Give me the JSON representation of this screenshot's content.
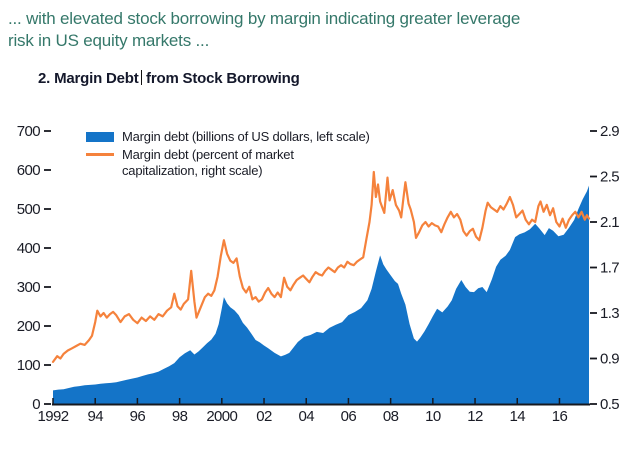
{
  "intro": {
    "line1": "... with elevated stock borrowing by margin indicating greater leverage",
    "line2": "risk in US equity markets ..."
  },
  "figure": {
    "title_full": "2. Margin Debt from Stock Borrowing",
    "title_prefix": "2. Margin Debt",
    "title_suffix": "from Stock Borrowing"
  },
  "legend": {
    "items": [
      {
        "label": "Margin debt (billions of US dollars, left scale)",
        "type": "area",
        "color": "#1474C8"
      },
      {
        "label": "Margin debt (percent of market capitalization, right scale)",
        "type": "line",
        "color": "#F5823C"
      }
    ]
  },
  "colors": {
    "area_blue": "#1474C8",
    "line_orange": "#F5823C",
    "intro_text": "#35786A",
    "title_text": "#14182B",
    "axis_text": "#1A1C26",
    "axis_line": "#16181F",
    "cursor": "#111111"
  },
  "chart_data": {
    "type": "area",
    "title": "2. Margin Debt from Stock Borrowing",
    "grid": "off",
    "legend_position": "top-left-inside",
    "left_axis": {
      "label": "billions of US dollars",
      "ticks": [
        700,
        600,
        500,
        400,
        300,
        200,
        100,
        0
      ],
      "range": [
        0,
        700
      ]
    },
    "right_axis": {
      "label": "percent of market capitalization",
      "ticks": [
        2.9,
        2.5,
        2.1,
        1.7,
        1.3,
        0.9,
        0.5
      ],
      "range": [
        0.5,
        2.9
      ]
    },
    "x_axis": {
      "tick_labels": [
        "1992",
        "94",
        "96",
        "98",
        "2000",
        "02",
        "04",
        "06",
        "08",
        "10",
        "12",
        "14",
        "16"
      ],
      "tick_years": [
        1992,
        1994,
        1996,
        1998,
        2000,
        2002,
        2004,
        2006,
        2008,
        2010,
        2012,
        2014,
        2016
      ],
      "range": [
        1992,
        2017.4
      ]
    },
    "series": [
      {
        "name": "Margin debt (billions of US dollars, left scale)",
        "type": "area",
        "axis": "left",
        "color": "#1474C8",
        "points": [
          [
            1992.0,
            35
          ],
          [
            1992.25,
            37
          ],
          [
            1992.5,
            38
          ],
          [
            1992.75,
            41
          ],
          [
            1993.0,
            44
          ],
          [
            1993.25,
            46
          ],
          [
            1993.5,
            48
          ],
          [
            1993.75,
            49
          ],
          [
            1994.0,
            50
          ],
          [
            1994.25,
            52
          ],
          [
            1994.5,
            53
          ],
          [
            1994.75,
            54
          ],
          [
            1995.0,
            56
          ],
          [
            1995.25,
            59
          ],
          [
            1995.5,
            62
          ],
          [
            1995.75,
            65
          ],
          [
            1996.0,
            68
          ],
          [
            1996.25,
            72
          ],
          [
            1996.5,
            76
          ],
          [
            1996.75,
            79
          ],
          [
            1997.0,
            83
          ],
          [
            1997.25,
            90
          ],
          [
            1997.5,
            97
          ],
          [
            1997.75,
            105
          ],
          [
            1998.0,
            120
          ],
          [
            1998.25,
            130
          ],
          [
            1998.5,
            138
          ],
          [
            1998.7,
            127
          ],
          [
            1998.9,
            135
          ],
          [
            1999.1,
            145
          ],
          [
            1999.3,
            156
          ],
          [
            1999.5,
            165
          ],
          [
            1999.7,
            180
          ],
          [
            1999.85,
            205
          ],
          [
            2000.0,
            245
          ],
          [
            2000.1,
            274
          ],
          [
            2000.25,
            258
          ],
          [
            2000.4,
            248
          ],
          [
            2000.6,
            240
          ],
          [
            2000.8,
            228
          ],
          [
            2001.0,
            208
          ],
          [
            2001.2,
            196
          ],
          [
            2001.4,
            180
          ],
          [
            2001.6,
            164
          ],
          [
            2001.8,
            158
          ],
          [
            2002.0,
            150
          ],
          [
            2002.2,
            143
          ],
          [
            2002.5,
            131
          ],
          [
            2002.8,
            122
          ],
          [
            2003.0,
            126
          ],
          [
            2003.2,
            131
          ],
          [
            2003.4,
            145
          ],
          [
            2003.6,
            159
          ],
          [
            2003.9,
            172
          ],
          [
            2004.2,
            177
          ],
          [
            2004.5,
            185
          ],
          [
            2004.8,
            182
          ],
          [
            2005.1,
            195
          ],
          [
            2005.4,
            203
          ],
          [
            2005.7,
            210
          ],
          [
            2006.0,
            228
          ],
          [
            2006.3,
            236
          ],
          [
            2006.6,
            246
          ],
          [
            2006.9,
            266
          ],
          [
            2007.1,
            295
          ],
          [
            2007.3,
            340
          ],
          [
            2007.5,
            381
          ],
          [
            2007.65,
            358
          ],
          [
            2007.8,
            345
          ],
          [
            2008.0,
            330
          ],
          [
            2008.2,
            315
          ],
          [
            2008.35,
            308
          ],
          [
            2008.5,
            283
          ],
          [
            2008.7,
            255
          ],
          [
            2008.9,
            205
          ],
          [
            2009.1,
            168
          ],
          [
            2009.25,
            160
          ],
          [
            2009.4,
            170
          ],
          [
            2009.6,
            186
          ],
          [
            2009.8,
            205
          ],
          [
            2010.0,
            225
          ],
          [
            2010.2,
            244
          ],
          [
            2010.45,
            235
          ],
          [
            2010.7,
            250
          ],
          [
            2010.9,
            266
          ],
          [
            2011.1,
            295
          ],
          [
            2011.35,
            318
          ],
          [
            2011.55,
            300
          ],
          [
            2011.75,
            288
          ],
          [
            2011.95,
            287
          ],
          [
            2012.15,
            297
          ],
          [
            2012.35,
            300
          ],
          [
            2012.55,
            287
          ],
          [
            2012.8,
            320
          ],
          [
            2013.0,
            352
          ],
          [
            2013.2,
            370
          ],
          [
            2013.45,
            380
          ],
          [
            2013.65,
            395
          ],
          [
            2013.9,
            428
          ],
          [
            2014.1,
            435
          ],
          [
            2014.35,
            440
          ],
          [
            2014.6,
            448
          ],
          [
            2014.85,
            462
          ],
          [
            2015.05,
            450
          ],
          [
            2015.3,
            433
          ],
          [
            2015.5,
            451
          ],
          [
            2015.7,
            444
          ],
          [
            2015.95,
            430
          ],
          [
            2016.2,
            434
          ],
          [
            2016.45,
            452
          ],
          [
            2016.7,
            472
          ],
          [
            2016.9,
            500
          ],
          [
            2017.1,
            525
          ],
          [
            2017.3,
            545
          ],
          [
            2017.4,
            560
          ]
        ]
      },
      {
        "name": "Margin debt (percent of market capitalization, right scale)",
        "type": "line",
        "axis": "right",
        "color": "#F5823C",
        "points": [
          [
            1992.0,
            0.87
          ],
          [
            1992.2,
            0.92
          ],
          [
            1992.35,
            0.9
          ],
          [
            1992.5,
            0.94
          ],
          [
            1992.7,
            0.97
          ],
          [
            1992.9,
            0.99
          ],
          [
            1993.1,
            1.01
          ],
          [
            1993.3,
            1.03
          ],
          [
            1993.5,
            1.02
          ],
          [
            1993.7,
            1.06
          ],
          [
            1993.85,
            1.1
          ],
          [
            1994.0,
            1.22
          ],
          [
            1994.1,
            1.32
          ],
          [
            1994.25,
            1.27
          ],
          [
            1994.4,
            1.3
          ],
          [
            1994.55,
            1.26
          ],
          [
            1994.7,
            1.29
          ],
          [
            1994.85,
            1.31
          ],
          [
            1995.0,
            1.28
          ],
          [
            1995.2,
            1.22
          ],
          [
            1995.4,
            1.27
          ],
          [
            1995.6,
            1.29
          ],
          [
            1995.8,
            1.24
          ],
          [
            1996.0,
            1.21
          ],
          [
            1996.2,
            1.26
          ],
          [
            1996.4,
            1.23
          ],
          [
            1996.6,
            1.27
          ],
          [
            1996.8,
            1.24
          ],
          [
            1997.0,
            1.29
          ],
          [
            1997.2,
            1.27
          ],
          [
            1997.4,
            1.32
          ],
          [
            1997.6,
            1.35
          ],
          [
            1997.75,
            1.47
          ],
          [
            1997.9,
            1.36
          ],
          [
            1998.05,
            1.33
          ],
          [
            1998.2,
            1.38
          ],
          [
            1998.4,
            1.42
          ],
          [
            1998.55,
            1.67
          ],
          [
            1998.7,
            1.4
          ],
          [
            1998.8,
            1.26
          ],
          [
            1999.0,
            1.35
          ],
          [
            1999.2,
            1.44
          ],
          [
            1999.35,
            1.47
          ],
          [
            1999.5,
            1.45
          ],
          [
            1999.65,
            1.5
          ],
          [
            1999.8,
            1.62
          ],
          [
            1999.95,
            1.8
          ],
          [
            2000.1,
            1.94
          ],
          [
            2000.25,
            1.82
          ],
          [
            2000.4,
            1.76
          ],
          [
            2000.55,
            1.74
          ],
          [
            2000.7,
            1.78
          ],
          [
            2000.85,
            1.62
          ],
          [
            2001.0,
            1.52
          ],
          [
            2001.15,
            1.48
          ],
          [
            2001.3,
            1.53
          ],
          [
            2001.45,
            1.42
          ],
          [
            2001.6,
            1.44
          ],
          [
            2001.75,
            1.4
          ],
          [
            2001.9,
            1.42
          ],
          [
            2002.05,
            1.48
          ],
          [
            2002.2,
            1.52
          ],
          [
            2002.35,
            1.47
          ],
          [
            2002.5,
            1.44
          ],
          [
            2002.65,
            1.48
          ],
          [
            2002.8,
            1.44
          ],
          [
            2002.95,
            1.61
          ],
          [
            2003.1,
            1.53
          ],
          [
            2003.25,
            1.5
          ],
          [
            2003.4,
            1.55
          ],
          [
            2003.55,
            1.59
          ],
          [
            2003.7,
            1.61
          ],
          [
            2003.85,
            1.63
          ],
          [
            2004.0,
            1.6
          ],
          [
            2004.15,
            1.57
          ],
          [
            2004.3,
            1.62
          ],
          [
            2004.45,
            1.66
          ],
          [
            2004.6,
            1.64
          ],
          [
            2004.75,
            1.63
          ],
          [
            2004.9,
            1.67
          ],
          [
            2005.05,
            1.7
          ],
          [
            2005.2,
            1.68
          ],
          [
            2005.35,
            1.66
          ],
          [
            2005.5,
            1.7
          ],
          [
            2005.65,
            1.72
          ],
          [
            2005.8,
            1.7
          ],
          [
            2005.95,
            1.75
          ],
          [
            2006.1,
            1.73
          ],
          [
            2006.25,
            1.72
          ],
          [
            2006.4,
            1.75
          ],
          [
            2006.55,
            1.77
          ],
          [
            2006.7,
            1.79
          ],
          [
            2006.85,
            1.95
          ],
          [
            2007.0,
            2.1
          ],
          [
            2007.1,
            2.25
          ],
          [
            2007.2,
            2.54
          ],
          [
            2007.3,
            2.32
          ],
          [
            2007.4,
            2.43
          ],
          [
            2007.5,
            2.28
          ],
          [
            2007.6,
            2.23
          ],
          [
            2007.7,
            2.18
          ],
          [
            2007.85,
            2.49
          ],
          [
            2007.95,
            2.29
          ],
          [
            2008.1,
            2.38
          ],
          [
            2008.25,
            2.25
          ],
          [
            2008.4,
            2.2
          ],
          [
            2008.5,
            2.14
          ],
          [
            2008.6,
            2.3
          ],
          [
            2008.7,
            2.45
          ],
          [
            2008.85,
            2.26
          ],
          [
            2008.95,
            2.21
          ],
          [
            2009.1,
            2.1
          ],
          [
            2009.2,
            1.96
          ],
          [
            2009.35,
            2.01
          ],
          [
            2009.5,
            2.07
          ],
          [
            2009.65,
            2.1
          ],
          [
            2009.8,
            2.06
          ],
          [
            2009.95,
            2.09
          ],
          [
            2010.1,
            2.07
          ],
          [
            2010.25,
            2.06
          ],
          [
            2010.4,
            2.01
          ],
          [
            2010.55,
            2.08
          ],
          [
            2010.7,
            2.14
          ],
          [
            2010.85,
            2.19
          ],
          [
            2011.0,
            2.14
          ],
          [
            2011.15,
            2.17
          ],
          [
            2011.3,
            2.12
          ],
          [
            2011.45,
            2.02
          ],
          [
            2011.6,
            1.98
          ],
          [
            2011.75,
            2.02
          ],
          [
            2011.9,
            2.04
          ],
          [
            2012.05,
            1.97
          ],
          [
            2012.2,
            1.94
          ],
          [
            2012.35,
            2.05
          ],
          [
            2012.5,
            2.2
          ],
          [
            2012.6,
            2.27
          ],
          [
            2012.75,
            2.23
          ],
          [
            2012.9,
            2.21
          ],
          [
            2013.05,
            2.19
          ],
          [
            2013.2,
            2.24
          ],
          [
            2013.35,
            2.21
          ],
          [
            2013.5,
            2.26
          ],
          [
            2013.65,
            2.32
          ],
          [
            2013.8,
            2.25
          ],
          [
            2013.95,
            2.14
          ],
          [
            2014.1,
            2.17
          ],
          [
            2014.25,
            2.2
          ],
          [
            2014.4,
            2.12
          ],
          [
            2014.55,
            2.08
          ],
          [
            2014.7,
            2.12
          ],
          [
            2014.85,
            2.1
          ],
          [
            2015.0,
            2.24
          ],
          [
            2015.1,
            2.28
          ],
          [
            2015.25,
            2.19
          ],
          [
            2015.4,
            2.25
          ],
          [
            2015.55,
            2.16
          ],
          [
            2015.7,
            2.22
          ],
          [
            2015.85,
            2.1
          ],
          [
            2016.0,
            2.06
          ],
          [
            2016.15,
            2.13
          ],
          [
            2016.3,
            2.05
          ],
          [
            2016.45,
            2.12
          ],
          [
            2016.6,
            2.16
          ],
          [
            2016.75,
            2.19
          ],
          [
            2016.9,
            2.14
          ],
          [
            2017.05,
            2.19
          ],
          [
            2017.2,
            2.12
          ],
          [
            2017.3,
            2.16
          ],
          [
            2017.4,
            2.13
          ]
        ]
      }
    ]
  }
}
